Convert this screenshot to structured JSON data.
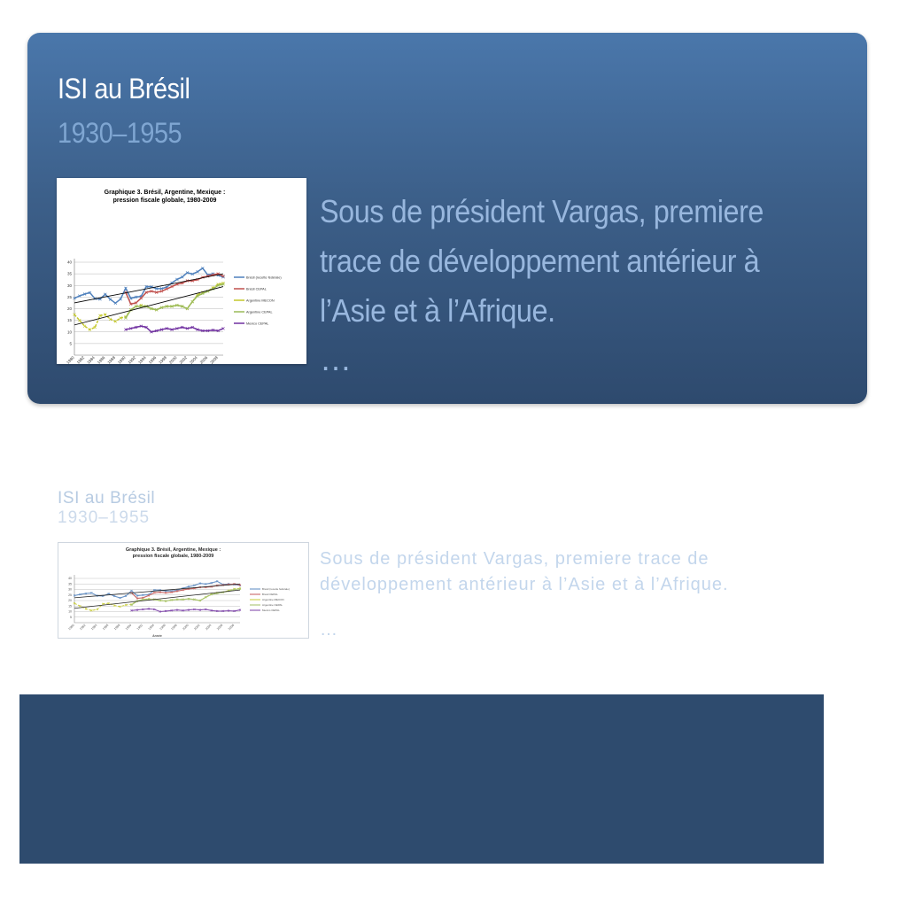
{
  "slide": {
    "title": "ISI au Brésil",
    "subtitle": "1930–1955",
    "body": "Sous de président Vargas, premiere trace de développement antérieur à l’Asie et à l’Afrique.",
    "ellipsis": "…"
  },
  "colors": {
    "card_top": "#4a77ab",
    "card_bottom": "#2e4a6e",
    "subtitle": "#7fa6d2",
    "body": "#98b7de",
    "bottom_block": "#2e4b6e"
  },
  "chart_data": {
    "type": "line",
    "title": "Graphique 3. Brésil, Argentine, Mexique : pression fiscale globale, 1980-2009",
    "xlabel": "Année",
    "ylabel": "",
    "ylim": [
      0,
      40
    ],
    "yticks": [
      5,
      10,
      15,
      20,
      25,
      30,
      35,
      40
    ],
    "x": [
      1980,
      1981,
      1982,
      1983,
      1984,
      1985,
      1986,
      1987,
      1988,
      1989,
      1990,
      1991,
      1992,
      1993,
      1994,
      1995,
      1996,
      1997,
      1998,
      1999,
      2000,
      2001,
      2002,
      2003,
      2004,
      2005,
      2006,
      2007,
      2008,
      2009
    ],
    "xtick_labels": [
      "1980",
      "1982",
      "1984",
      "1986",
      "1988",
      "1990",
      "1992",
      "1994",
      "1996",
      "1998",
      "2000",
      "2002",
      "2004",
      "2006",
      "2008"
    ],
    "legend_position": "right",
    "series": [
      {
        "name": "Brésil (recette fédérale)",
        "color": "#4f81bd",
        "values": [
          24.5,
          25.5,
          26.3,
          26.9,
          24.3,
          24.1,
          26.2,
          24.0,
          22.4,
          24.1,
          28.8,
          24.4,
          25.0,
          25.3,
          29.5,
          29.4,
          28.6,
          28.6,
          29.3,
          31.1,
          32.6,
          33.6,
          35.5,
          34.9,
          35.9,
          37.4,
          34.5,
          35.0,
          34.4,
          33.6
        ]
      },
      {
        "name": "Brésil CEPAL",
        "color": "#c0504d",
        "values": [
          null,
          null,
          null,
          null,
          null,
          null,
          null,
          null,
          null,
          null,
          27.0,
          22.0,
          22.5,
          24.5,
          27.0,
          27.5,
          27.0,
          27.5,
          28.5,
          29.5,
          30.5,
          31.0,
          32.0,
          32.0,
          32.5,
          33.5,
          34.0,
          34.5,
          35.0,
          34.0
        ]
      },
      {
        "name": "Argentine MECON",
        "color": "#c4c82a",
        "values": [
          17.5,
          15.0,
          12.5,
          11.0,
          12.0,
          17.0,
          17.5,
          15.5,
          14.5,
          16.0,
          16.5,
          19.5,
          21.0,
          21.5,
          21.0,
          20.0,
          19.5,
          20.5,
          21.0,
          21.0,
          21.5,
          21.0,
          20.0,
          23.0,
          26.0,
          27.0,
          27.5,
          29.0,
          30.5,
          31.0
        ]
      },
      {
        "name": "Argentine CEPAL",
        "color": "#9bbb59",
        "values": [
          null,
          null,
          null,
          null,
          null,
          null,
          null,
          null,
          null,
          null,
          16.0,
          19.5,
          21.0,
          21.0,
          21.0,
          20.0,
          19.5,
          20.5,
          21.0,
          21.0,
          21.5,
          21.0,
          20.0,
          23.0,
          25.5,
          26.5,
          27.5,
          28.5,
          30.0,
          30.5
        ]
      },
      {
        "name": "Mexico CEPAL",
        "color": "#7030a0",
        "values": [
          null,
          null,
          null,
          null,
          null,
          null,
          null,
          null,
          null,
          null,
          11.0,
          11.5,
          12.0,
          12.5,
          12.0,
          10.0,
          10.5,
          11.0,
          11.5,
          11.0,
          11.5,
          12.0,
          11.5,
          12.0,
          11.0,
          10.5,
          10.5,
          10.8,
          10.5,
          11.5
        ]
      }
    ],
    "trendlines": [
      {
        "color": "#000000",
        "from": [
          1980,
          22.5
        ],
        "to": [
          2009,
          35.0
        ]
      },
      {
        "color": "#000000",
        "from": [
          1980,
          13.0
        ],
        "to": [
          2009,
          29.5
        ]
      }
    ]
  }
}
